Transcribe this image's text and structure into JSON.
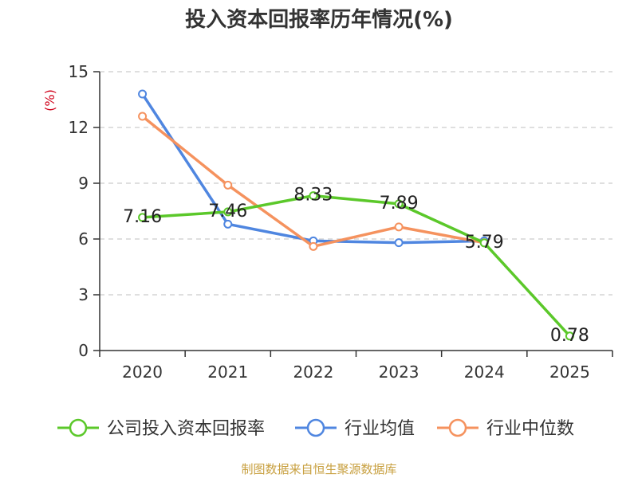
{
  "chart_data": {
    "type": "line",
    "title": "投入资本回报率历年情况(%)",
    "ylabel": "(%)",
    "xlabel": "",
    "categories": [
      "2020",
      "2021",
      "2022",
      "2023",
      "2024",
      "2025"
    ],
    "ylim": [
      0,
      15
    ],
    "yticks": [
      0,
      3,
      6,
      9,
      12,
      15
    ],
    "grid": true,
    "legend_position": "bottom",
    "series": [
      {
        "name": "公司投入资本回报率",
        "color": "#5bc82a",
        "values": [
          7.16,
          7.46,
          8.33,
          7.89,
          5.79,
          0.78
        ],
        "labels": [
          "7.16",
          "7.46",
          "8.33",
          "7.89",
          "5.79",
          "0.78"
        ]
      },
      {
        "name": "行业均值",
        "color": "#4f86e0",
        "values": [
          13.8,
          6.8,
          5.9,
          5.8,
          5.9,
          null
        ]
      },
      {
        "name": "行业中位数",
        "color": "#f5925e",
        "values": [
          12.6,
          8.9,
          5.6,
          6.65,
          5.8,
          null
        ]
      }
    ]
  },
  "source": "制图数据来自恒生聚源数据库"
}
